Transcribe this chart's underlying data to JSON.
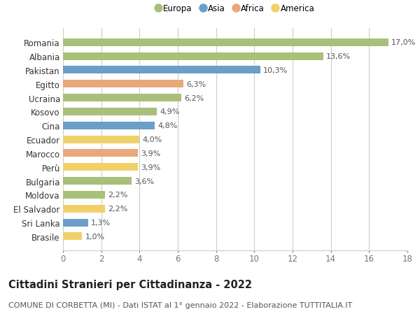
{
  "categories": [
    "Romania",
    "Albania",
    "Pakistan",
    "Egitto",
    "Ucraina",
    "Kosovo",
    "Cina",
    "Ecuador",
    "Marocco",
    "Perù",
    "Bulgaria",
    "Moldova",
    "El Salvador",
    "Sri Lanka",
    "Brasile"
  ],
  "values": [
    17.0,
    13.6,
    10.3,
    6.3,
    6.2,
    4.9,
    4.8,
    4.0,
    3.9,
    3.9,
    3.6,
    2.2,
    2.2,
    1.3,
    1.0
  ],
  "labels": [
    "17,0%",
    "13,6%",
    "10,3%",
    "6,3%",
    "6,2%",
    "4,9%",
    "4,8%",
    "4,0%",
    "3,9%",
    "3,9%",
    "3,6%",
    "2,2%",
    "2,2%",
    "1,3%",
    "1,0%"
  ],
  "continents": [
    "Europa",
    "Europa",
    "Asia",
    "Africa",
    "Europa",
    "Europa",
    "Asia",
    "America",
    "Africa",
    "America",
    "Europa",
    "Europa",
    "America",
    "Asia",
    "America"
  ],
  "colors": {
    "Europa": "#a8c07a",
    "Asia": "#6b9ec9",
    "Africa": "#e8a87c",
    "America": "#f0d06a"
  },
  "legend_labels": [
    "Europa",
    "Asia",
    "Africa",
    "America"
  ],
  "xlim": [
    0,
    18
  ],
  "xticks": [
    0,
    2,
    4,
    6,
    8,
    10,
    12,
    14,
    16,
    18
  ],
  "title": "Cittadini Stranieri per Cittadinanza - 2022",
  "subtitle": "COMUNE DI CORBETTA (MI) - Dati ISTAT al 1° gennaio 2022 - Elaborazione TUTTITALIA.IT",
  "bg_color": "#ffffff",
  "grid_color": "#cccccc",
  "bar_height": 0.55,
  "label_fontsize": 8,
  "tick_fontsize": 8.5,
  "title_fontsize": 10.5,
  "subtitle_fontsize": 8
}
